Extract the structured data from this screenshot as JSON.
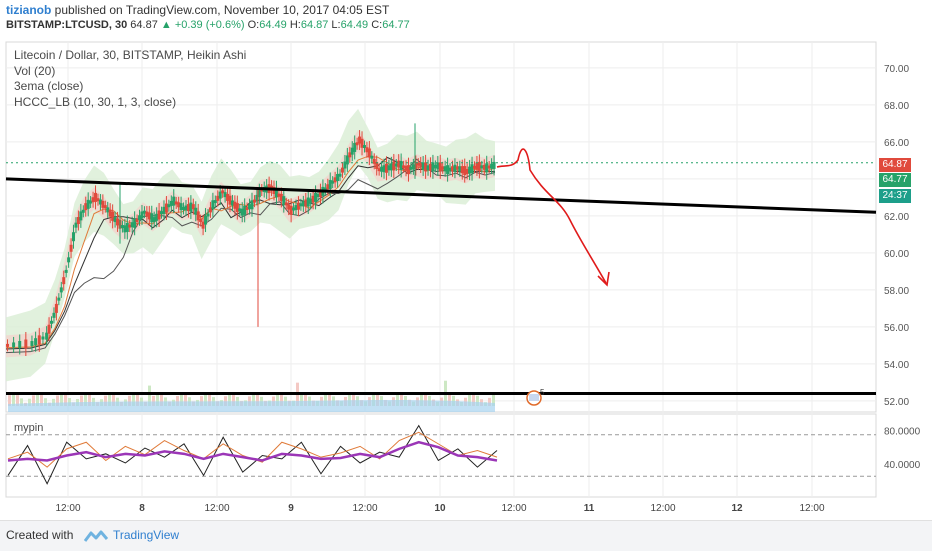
{
  "header": {
    "author": "tizianob",
    "published_text": "published on TradingView.com, November 10, 2017 04:05 EST",
    "symbol": "BITSTAMP:LTCUSD, 30",
    "last": "64.87",
    "change": "+0.39 (+0.6%)",
    "o_label": "O:",
    "o": "64.49",
    "h_label": "H:",
    "h": "64.87",
    "l_label": "L:",
    "l": "64.49",
    "c_label": "C:",
    "c": "64.77"
  },
  "legend": {
    "title": "Litecoin / Dollar, 30, BITSTAMP, Heikin Ashi",
    "vol": "Vol (20)",
    "ema": "3ema (close)",
    "hccc": "HCCC_LB (10, 30, 1, 3, close)"
  },
  "indicator_label": "mypin",
  "price_tags": {
    "last": "64.87",
    "close": "64.77",
    "countdown": "24:37"
  },
  "event_badge": "5",
  "footer": {
    "created": "Created with",
    "brand": "TradingView"
  },
  "colors": {
    "up": "#26a269",
    "down": "#e04a3c",
    "grid": "#eeeeee",
    "arrow": "#e01b1b",
    "tag_red": "#e04a3c",
    "tag_green": "#26a269",
    "tag_teal": "#1d9f8a",
    "stoch_purple": "#9b36b7"
  },
  "chart_data": [
    {
      "type": "candlestick",
      "title": "Litecoin / Dollar, 30, BITSTAMP, Heikin Ashi",
      "price_axis_ticks": [
        "70.00",
        "68.00",
        "66.00",
        "64.00",
        "62.00",
        "60.00",
        "58.00",
        "56.00",
        "54.00",
        "52.00"
      ],
      "ylim": [
        51.4,
        71.4
      ],
      "time_axis_ticks": [
        "12:00",
        "8",
        "12:00",
        "9",
        "12:00",
        "10",
        "12:00",
        "11",
        "12:00",
        "12",
        "12:00"
      ],
      "price_path": [
        [
          0,
          55
        ],
        [
          0.05,
          55.1
        ],
        [
          0.08,
          55.5
        ],
        [
          0.1,
          57
        ],
        [
          0.12,
          59
        ],
        [
          0.14,
          61.5
        ],
        [
          0.16,
          62.5
        ],
        [
          0.18,
          63
        ],
        [
          0.2,
          62.5
        ],
        [
          0.22,
          61.8
        ],
        [
          0.24,
          61.3
        ],
        [
          0.26,
          61.6
        ],
        [
          0.28,
          62.2
        ],
        [
          0.3,
          61.8
        ],
        [
          0.32,
          62.3
        ],
        [
          0.34,
          62.8
        ],
        [
          0.36,
          62.4
        ],
        [
          0.38,
          62.5
        ],
        [
          0.4,
          61.5
        ],
        [
          0.42,
          62.6
        ],
        [
          0.44,
          63.3
        ],
        [
          0.46,
          62.7
        ],
        [
          0.48,
          62.2
        ],
        [
          0.5,
          62.6
        ],
        [
          0.52,
          63.4
        ],
        [
          0.54,
          63.5
        ],
        [
          0.56,
          63
        ],
        [
          0.58,
          62.3
        ],
        [
          0.6,
          62.6
        ],
        [
          0.62,
          62.8
        ],
        [
          0.64,
          63.2
        ],
        [
          0.66,
          63.7
        ],
        [
          0.68,
          64.2
        ],
        [
          0.7,
          65.3
        ],
        [
          0.72,
          66.1
        ],
        [
          0.74,
          65.4
        ],
        [
          0.76,
          64.5
        ],
        [
          0.78,
          64.6
        ],
        [
          0.8,
          64.8
        ],
        [
          0.82,
          64.5
        ],
        [
          0.84,
          64.8
        ],
        [
          0.86,
          64.6
        ],
        [
          0.88,
          64.7
        ],
        [
          0.9,
          64.5
        ],
        [
          0.92,
          64.6
        ],
        [
          0.94,
          64.4
        ],
        [
          0.96,
          64.7
        ],
        [
          0.98,
          64.6
        ],
        [
          1,
          64.77
        ]
      ],
      "last_price": 64.87,
      "close": 64.77,
      "trendline_descending": {
        "from": [
          0,
          64.0
        ],
        "to": [
          1.97,
          62.2
        ]
      },
      "support_line": 52.4,
      "dotted_price_line": 64.87
    },
    {
      "type": "line",
      "title": "mypin",
      "axis_ticks": [
        "80.0000",
        "40.0000"
      ],
      "ylim": [
        0,
        100
      ],
      "dashed_levels": [
        75,
        25
      ],
      "series_values": [
        {
          "values": [
            40,
            48,
            30,
            52,
            60,
            38,
            55,
            45,
            62,
            50,
            40,
            58,
            44,
            36,
            60,
            52,
            42,
            47,
            55,
            40,
            62,
            72,
            58,
            44,
            50,
            42
          ]
        },
        {
          "values": [
            44,
            46,
            44,
            50,
            54,
            48,
            52,
            50,
            55,
            52,
            46,
            52,
            48,
            44,
            52,
            50,
            46,
            47,
            52,
            48,
            58,
            66,
            60,
            50,
            48,
            44
          ]
        }
      ]
    }
  ]
}
